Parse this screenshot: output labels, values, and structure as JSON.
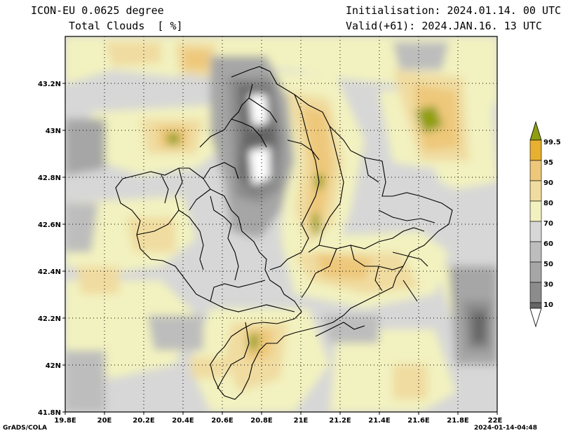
{
  "header": {
    "model": "ICON-EU 0.0625 degree",
    "variable": "Total Clouds  [ %]",
    "initialisation": "Initialisation: 2024.01.14. 00 UTC",
    "valid": "Valid(+61): 2024.JAN.16. 13 UTC"
  },
  "map": {
    "lon_range": [
      19.8,
      22.0
    ],
    "lat_range": [
      41.8,
      43.4
    ],
    "x_ticks": [
      "19.8E",
      "20E",
      "20.2E",
      "20.4E",
      "20.6E",
      "20.8E",
      "21E",
      "21.2E",
      "21.4E",
      "21.6E",
      "21.8E",
      "22E"
    ],
    "y_ticks": [
      "41.8N",
      "42N",
      "42.2N",
      "42.4N",
      "42.6N",
      "42.8N",
      "43N",
      "43.2N"
    ],
    "gridlines": "dotted"
  },
  "colorbar": {
    "labels": [
      "10",
      "30",
      "50",
      "60",
      "70",
      "80",
      "90",
      "95",
      "99.5"
    ],
    "colors": [
      "#666666",
      "#8c8c8c",
      "#a6a6a6",
      "#bdbdbd",
      "#d7d7d7",
      "#f2f2c0",
      "#f0dca0",
      "#eec87a",
      "#e8b030",
      "#8f9e10"
    ]
  },
  "footer": {
    "left": "GrADS/COLA",
    "right": "2024-01-14-04:48"
  }
}
